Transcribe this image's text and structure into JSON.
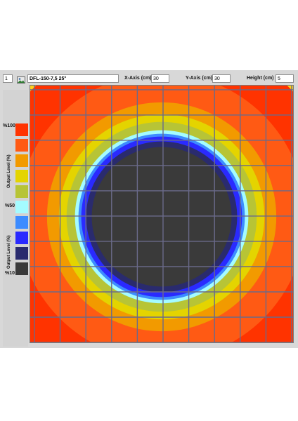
{
  "toolbar": {
    "count_value": "1",
    "model_value": "DFL-150-7,5 25°",
    "x_axis_label": "X-Axis (cm)",
    "x_axis_value": "30",
    "y_axis_label": "Y-Axis (cm)",
    "y_axis_value": "30",
    "height_label": "Height (cm)",
    "height_value": "5",
    "icon": "picture-icon"
  },
  "legend": {
    "label_top": "%100",
    "label_mid": "%50",
    "label_bottom": "%10",
    "axis_label_upper": "Output Level (%)",
    "axis_label_lower": "Output Level (%)",
    "swatches": [
      "#ff3300",
      "#ff5a14",
      "#f29a00",
      "#e4d400",
      "#b7c436",
      "#a4fbff",
      "#3d8cff",
      "#2a2aff",
      "#2a2b6e",
      "#3a3a3a"
    ]
  },
  "heatmap": {
    "grid_columns": 10,
    "grid_rows": 10,
    "rings": [
      {
        "level": 10,
        "color": "#3a3a3a"
      },
      {
        "level": 20,
        "color": "#2a2b6e"
      },
      {
        "level": 30,
        "color": "#2a2aff"
      },
      {
        "level": 40,
        "color": "#3d8cff"
      },
      {
        "level": 50,
        "color": "#a4fbff"
      },
      {
        "level": 60,
        "color": "#b7c436"
      },
      {
        "level": 70,
        "color": "#e4d400"
      },
      {
        "level": 80,
        "color": "#f29a00"
      },
      {
        "level": 90,
        "color": "#ff5a14"
      },
      {
        "level": 100,
        "color": "#ff3300"
      }
    ],
    "background_color": "#ffd21a"
  }
}
